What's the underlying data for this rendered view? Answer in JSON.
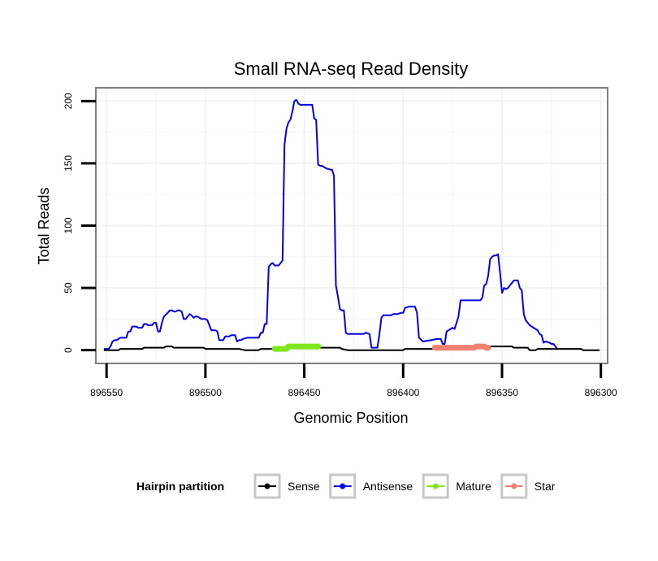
{
  "chart_data": {
    "type": "line",
    "title": "Small RNA-seq Read Density",
    "xlabel": "Genomic Position",
    "ylabel": "Total Reads",
    "xlim": [
      896555,
      896297
    ],
    "x_reversed": true,
    "ylim": [
      -10,
      210
    ],
    "xticks": [
      896550,
      896500,
      896450,
      896400,
      896350,
      896300
    ],
    "xtick_labels": [
      "896550",
      "896500",
      "896450",
      "896400",
      "896350",
      "896300"
    ],
    "yticks": [
      0,
      50,
      100,
      150,
      200
    ],
    "ytick_labels": [
      "0",
      "50",
      "100",
      "150",
      "200"
    ],
    "grid": true,
    "legend": {
      "title": "Hairpin partition",
      "position": "bottom",
      "entries": [
        {
          "name": "Sense",
          "color": "#000000"
        },
        {
          "name": "Antisense",
          "color": "#0000ee"
        },
        {
          "name": "Mature",
          "color": "#7fe61a"
        },
        {
          "name": "Star",
          "color": "#f08070"
        }
      ]
    },
    "series": [
      {
        "name": "Antisense",
        "color": "#0000ee",
        "points": [
          [
            896551,
            1
          ],
          [
            896549,
            1
          ],
          [
            896548,
            3
          ],
          [
            896547,
            7
          ],
          [
            896546,
            8
          ],
          [
            896545,
            8
          ],
          [
            896544,
            9
          ],
          [
            896543,
            10
          ],
          [
            896542,
            10
          ],
          [
            896540,
            10
          ],
          [
            896539,
            15
          ],
          [
            896538,
            15
          ],
          [
            896537,
            19
          ],
          [
            896535,
            19
          ],
          [
            896534,
            18
          ],
          [
            896532,
            18
          ],
          [
            896531,
            21
          ],
          [
            896530,
            21
          ],
          [
            896529,
            20
          ],
          [
            896527,
            20
          ],
          [
            896526,
            22
          ],
          [
            896525,
            22
          ],
          [
            896524,
            15
          ],
          [
            896523,
            15
          ],
          [
            896522,
            22
          ],
          [
            896521,
            27
          ],
          [
            896519,
            30
          ],
          [
            896518,
            32
          ],
          [
            896517,
            32
          ],
          [
            896516,
            31
          ],
          [
            896515,
            31
          ],
          [
            896514,
            32
          ],
          [
            896513,
            32
          ],
          [
            896512,
            31
          ],
          [
            896511,
            25
          ],
          [
            896510,
            25
          ],
          [
            896509,
            27
          ],
          [
            896508,
            29
          ],
          [
            896507,
            28
          ],
          [
            896506,
            26
          ],
          [
            896505,
            27
          ],
          [
            896504,
            27
          ],
          [
            896502,
            25
          ],
          [
            896500,
            25
          ],
          [
            896499,
            24
          ],
          [
            896498,
            20
          ],
          [
            896497,
            16
          ],
          [
            896496,
            16
          ],
          [
            896495,
            16
          ],
          [
            896494,
            15
          ],
          [
            896493,
            8
          ],
          [
            896491,
            8
          ],
          [
            896490,
            11
          ],
          [
            896488,
            11
          ],
          [
            896487,
            12
          ],
          [
            896485,
            12
          ],
          [
            896484,
            7
          ],
          [
            896483,
            8
          ],
          [
            896482,
            8
          ],
          [
            896481,
            9
          ],
          [
            896479,
            10
          ],
          [
            896477,
            10
          ],
          [
            896475,
            10
          ],
          [
            896473,
            10
          ],
          [
            896472,
            14
          ],
          [
            896471,
            14
          ],
          [
            896470,
            21
          ],
          [
            896469,
            21
          ],
          [
            896468,
            67
          ],
          [
            896467,
            69
          ],
          [
            896466,
            70
          ],
          [
            896465,
            68
          ],
          [
            896463,
            68
          ],
          [
            896462,
            70
          ],
          [
            896461,
            72
          ],
          [
            896460,
            165
          ],
          [
            896459,
            178
          ],
          [
            896458,
            183
          ],
          [
            896457,
            185
          ],
          [
            896456,
            192
          ],
          [
            896455,
            200
          ],
          [
            896454,
            201
          ],
          [
            896453,
            198
          ],
          [
            896452,
            197
          ],
          [
            896450,
            197
          ],
          [
            896448,
            197
          ],
          [
            896447,
            197
          ],
          [
            896446,
            197
          ],
          [
            896445,
            186
          ],
          [
            896444,
            185
          ],
          [
            896443,
            149
          ],
          [
            896442,
            148
          ],
          [
            896441,
            148
          ],
          [
            896439,
            146
          ],
          [
            896437,
            145
          ],
          [
            896436,
            145
          ],
          [
            896435,
            140
          ],
          [
            896434,
            52
          ],
          [
            896433,
            43
          ],
          [
            896432,
            33
          ],
          [
            896431,
            32
          ],
          [
            896430,
            32
          ],
          [
            896429,
            14
          ],
          [
            896428,
            13
          ],
          [
            896426,
            13
          ],
          [
            896424,
            13
          ],
          [
            896422,
            13
          ],
          [
            896420,
            13
          ],
          [
            896419,
            14
          ],
          [
            896417,
            13
          ],
          [
            896416,
            2
          ],
          [
            896413,
            2
          ],
          [
            896412,
            13
          ],
          [
            896411,
            26
          ],
          [
            896410,
            28
          ],
          [
            896408,
            28
          ],
          [
            896406,
            28
          ],
          [
            896405,
            29
          ],
          [
            896403,
            29
          ],
          [
            896401,
            30
          ],
          [
            896400,
            30
          ],
          [
            896399,
            34
          ],
          [
            896397,
            35
          ],
          [
            896395,
            35
          ],
          [
            896394,
            35
          ],
          [
            896393,
            30
          ],
          [
            896392,
            10
          ],
          [
            896390,
            7
          ],
          [
            896386,
            8
          ],
          [
            896383,
            9
          ],
          [
            896381,
            9
          ],
          [
            896380,
            5
          ],
          [
            896379,
            5
          ],
          [
            896378,
            15
          ],
          [
            896376,
            17
          ],
          [
            896375,
            18
          ],
          [
            896374,
            17
          ],
          [
            896373,
            22
          ],
          [
            896372,
            27
          ],
          [
            896371,
            40
          ],
          [
            896369,
            40
          ],
          [
            896366,
            40
          ],
          [
            896364,
            40
          ],
          [
            896362,
            40
          ],
          [
            896361,
            40
          ],
          [
            896360,
            42
          ],
          [
            896359,
            52
          ],
          [
            896358,
            53
          ],
          [
            896357,
            60
          ],
          [
            896356,
            73
          ],
          [
            896355,
            75
          ],
          [
            896354,
            76
          ],
          [
            896353,
            76
          ],
          [
            896352,
            77
          ],
          [
            896351,
            62
          ],
          [
            896350,
            46
          ],
          [
            896349,
            50
          ],
          [
            896348,
            49
          ],
          [
            896347,
            50
          ],
          [
            896346,
            52
          ],
          [
            896345,
            54
          ],
          [
            896344,
            56
          ],
          [
            896343,
            56
          ],
          [
            896342,
            56
          ],
          [
            896341,
            50
          ],
          [
            896340,
            48
          ],
          [
            896339,
            29
          ],
          [
            896338,
            24
          ],
          [
            896336,
            20
          ],
          [
            896334,
            18
          ],
          [
            896332,
            16
          ],
          [
            896331,
            13
          ],
          [
            896330,
            12
          ],
          [
            896329,
            6
          ],
          [
            896328,
            7
          ],
          [
            896326,
            6
          ],
          [
            896325,
            5
          ],
          [
            896324,
            5
          ],
          [
            896323,
            3
          ],
          [
            896322,
            1
          ]
        ]
      },
      {
        "name": "Sense",
        "color": "#000000",
        "points": [
          [
            896551,
            0
          ],
          [
            896544,
            0
          ],
          [
            896543,
            1
          ],
          [
            896532,
            1
          ],
          [
            896531,
            2
          ],
          [
            896521,
            2
          ],
          [
            896520,
            3
          ],
          [
            896517,
            3
          ],
          [
            896516,
            2
          ],
          [
            896501,
            2
          ],
          [
            896500,
            1
          ],
          [
            896483,
            1
          ],
          [
            896480,
            0
          ],
          [
            896473,
            0
          ],
          [
            896472,
            1
          ],
          [
            896466,
            1
          ],
          [
            896465,
            2
          ],
          [
            896432,
            2
          ],
          [
            896431,
            1
          ],
          [
            896428,
            0
          ],
          [
            896400,
            0
          ],
          [
            896399,
            1
          ],
          [
            896378,
            1
          ],
          [
            896377,
            2
          ],
          [
            896372,
            2
          ],
          [
            896371,
            3
          ],
          [
            896345,
            3
          ],
          [
            896344,
            2
          ],
          [
            896337,
            2
          ],
          [
            896336,
            0
          ],
          [
            896333,
            0
          ],
          [
            896332,
            1
          ],
          [
            896310,
            1
          ],
          [
            896309,
            0
          ],
          [
            896301,
            0
          ]
        ]
      },
      {
        "name": "Mature",
        "color": "#7fe61a",
        "points": [
          [
            896465,
            1
          ],
          [
            896459,
            1
          ],
          [
            896458,
            3
          ],
          [
            896443,
            3
          ]
        ]
      },
      {
        "name": "Star",
        "color": "#f08070",
        "points": [
          [
            896384,
            2
          ],
          [
            896364,
            2
          ],
          [
            896363,
            3
          ],
          [
            896359,
            3
          ],
          [
            896358,
            2
          ],
          [
            896357,
            2
          ]
        ]
      }
    ]
  }
}
